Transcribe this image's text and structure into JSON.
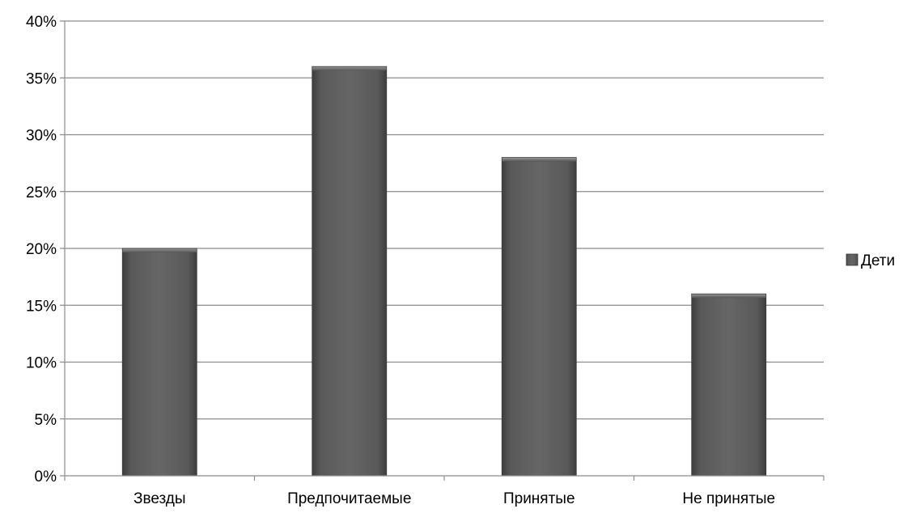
{
  "chart_data": {
    "type": "bar",
    "categories": [
      "Звезды",
      "Предпочитаемые",
      "Принятые",
      "Не принятые"
    ],
    "series": [
      {
        "name": "Дети",
        "values": [
          20,
          36,
          28,
          16
        ]
      }
    ],
    "ylim": [
      0,
      40
    ],
    "yticks": [
      "0%",
      "5%",
      "10%",
      "15%",
      "20%",
      "25%",
      "30%",
      "35%",
      "40%"
    ],
    "ytick_values": [
      0,
      5,
      10,
      15,
      20,
      25,
      30,
      35,
      40
    ],
    "grid": true,
    "legend_position": "right",
    "bar_color": "#5a5a5a"
  }
}
